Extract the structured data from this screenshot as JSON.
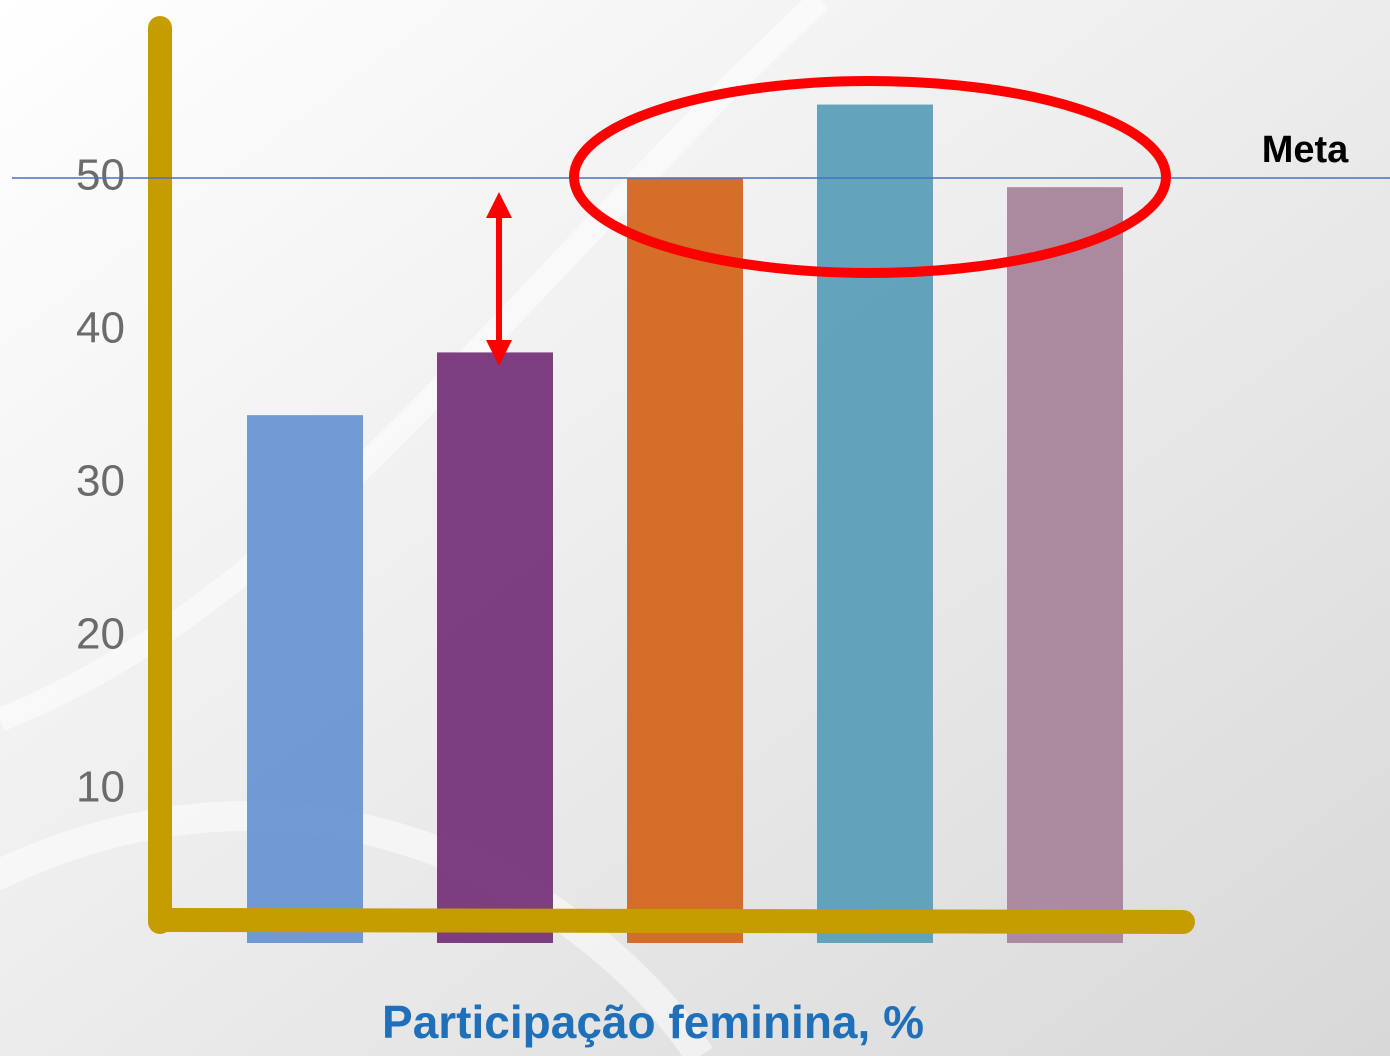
{
  "chart_data": {
    "type": "bar",
    "title": "Participação feminina, %",
    "categories": [
      null,
      null,
      null,
      null,
      null
    ],
    "values": [
      34.5,
      38.6,
      50.0,
      54.8,
      49.4
    ],
    "colors": [
      "#6a96d4",
      "#76357a",
      "#d2661c",
      "#5b9eb7",
      "#a8859c"
    ],
    "ylim": [
      0,
      60
    ],
    "yticks": [
      10,
      20,
      30,
      40,
      50
    ],
    "grid": false,
    "reference_line": {
      "value": 50,
      "label": "Meta"
    }
  }
}
